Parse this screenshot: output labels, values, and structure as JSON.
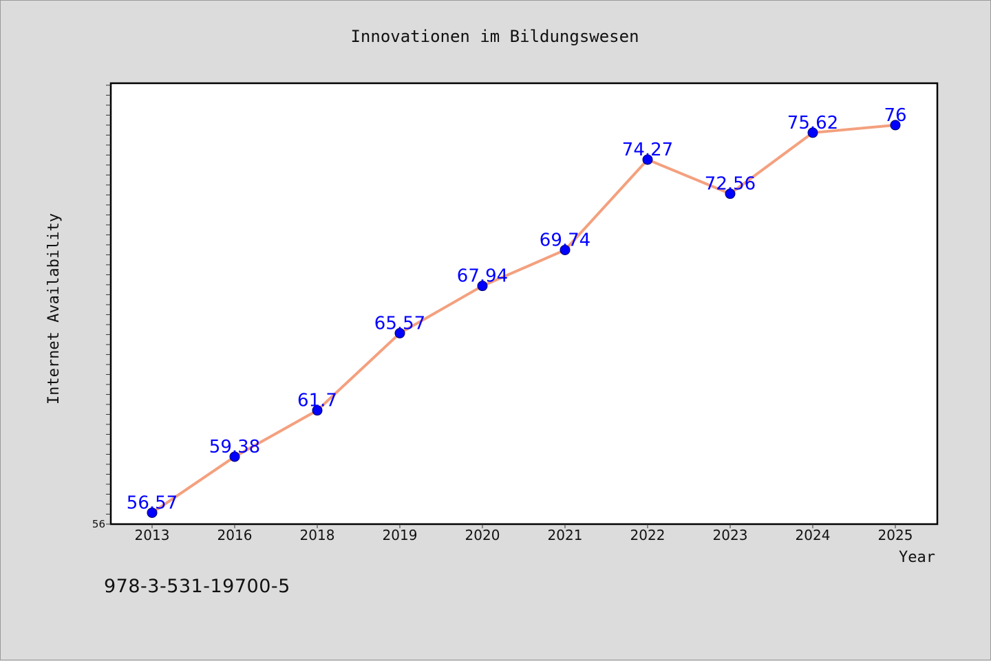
{
  "chart_data": {
    "type": "line",
    "title": "Innovationen im Bildungswesen",
    "xlabel": "Year",
    "ylabel": "Internet Availability",
    "categories": [
      "2013",
      "2016",
      "2018",
      "2019",
      "2020",
      "2021",
      "2022",
      "2023",
      "2024",
      "2025"
    ],
    "series": [
      {
        "values": [
          56.57,
          59.38,
          61.7,
          65.57,
          67.94,
          69.74,
          74.27,
          72.56,
          75.62,
          76
        ]
      }
    ],
    "data_labels": [
      "56.57",
      "59.38",
      "61.7",
      "65.57",
      "67.94",
      "69.74",
      "74.27",
      "72.56",
      "75.62",
      "76"
    ],
    "ylim": [
      56,
      78.1
    ],
    "y_tick_labels": [
      "56"
    ],
    "grid": false,
    "legend": "none",
    "colors": {
      "background": "#dcdcdc",
      "plot_background": "#ffffff",
      "line": "#f4a07e",
      "marker": "#0000ff",
      "data_label": "#0000ff"
    }
  },
  "footer": {
    "isbn": "978-3-531-19700-5"
  }
}
